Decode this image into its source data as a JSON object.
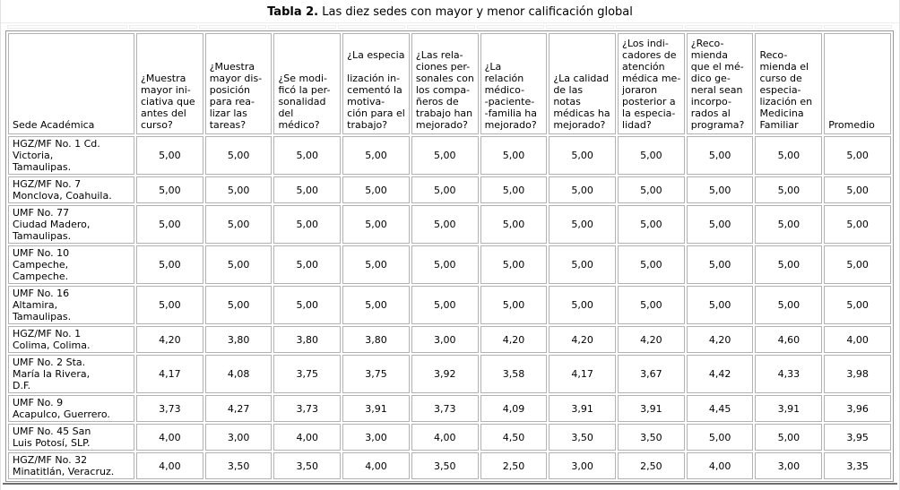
{
  "title": {
    "prefix": "Tabla 2.",
    "text": "Las diez sedes con mayor y menor calificación global"
  },
  "table": {
    "columns": [
      "Sede Académica",
      "¿Muestra\nmayor ini-\nciativa que\nantes del\ncurso?",
      "¿Muestra\nmayor dis-\nposición\npara rea-\nlizar las\ntareas?",
      "¿Se modi-\nficó la per-\nsonalidad\ndel médico?",
      "¿La especia\n\nlización in-\ncementó la\nmotiva-\nción para el\ntrabajo?",
      "¿Las rela-\nciones per-\nsonales con\nlos compa-\nñeros de\ntrabajo han\nmejorado?",
      "¿La relación\nmédico-\n-paciente-\n-familia ha\nmejorado?",
      "¿La calidad\nde las notas\nmédicas ha\nmejorado?",
      "¿Los indi-\ncadores de\natención\nmédica me-\njoraron\nposterior a\nla especia-\nlidad?",
      "¿Reco-\nmienda\nque el mé-\ndico ge-\nneral sean\nincorpo-\nrados al\nprograma?",
      "Reco-\nmienda el\ncurso de\nespecia-\nlización en\nMedicina\nFamiliar",
      "Promedio"
    ],
    "rows": [
      {
        "sede": "HGZ/MF No. 1 Cd.\nVictoria,\nTamaulipas.",
        "values": [
          "5,00",
          "5,00",
          "5,00",
          "5,00",
          "5,00",
          "5,00",
          "5,00",
          "5,00",
          "5,00",
          "5,00",
          "5,00"
        ]
      },
      {
        "sede": "HGZ/MF No. 7\nMonclova, Coahuila.",
        "values": [
          "5,00",
          "5,00",
          "5,00",
          "5,00",
          "5,00",
          "5,00",
          "5,00",
          "5,00",
          "5,00",
          "5,00",
          "5,00"
        ]
      },
      {
        "sede": "UMF No. 77\nCiudad Madero,\nTamaulipas.",
        "values": [
          "5,00",
          "5,00",
          "5,00",
          "5,00",
          "5,00",
          "5,00",
          "5,00",
          "5,00",
          "5,00",
          "5,00",
          "5,00"
        ]
      },
      {
        "sede": "UMF No. 10\nCampeche,\nCampeche.",
        "values": [
          "5,00",
          "5,00",
          "5,00",
          "5,00",
          "5,00",
          "5,00",
          "5,00",
          "5,00",
          "5,00",
          "5,00",
          "5,00"
        ]
      },
      {
        "sede": "UMF No. 16\nAltamira,\nTamaulipas.",
        "values": [
          "5,00",
          "5,00",
          "5,00",
          "5,00",
          "5,00",
          "5,00",
          "5,00",
          "5,00",
          "5,00",
          "5,00",
          "5,00"
        ]
      },
      {
        "sede": "HGZ/MF No. 1\nColima, Colima.",
        "values": [
          "4,20",
          "3,80",
          "3,80",
          "3,80",
          "3,00",
          "4,20",
          "4,20",
          "4,20",
          "4,20",
          "4,60",
          "4,00"
        ]
      },
      {
        "sede": "UMF No. 2 Sta.\nMaría la Rivera,\nD.F.",
        "values": [
          "4,17",
          "4,08",
          "3,75",
          "3,75",
          "3,92",
          "3,58",
          "4,17",
          "3,67",
          "4,42",
          "4,33",
          "3,98"
        ]
      },
      {
        "sede": "UMF No. 9\nAcapulco, Guerrero.",
        "values": [
          "3,73",
          "4,27",
          "3,73",
          "3,91",
          "3,73",
          "4,09",
          "3,91",
          "3,91",
          "4,45",
          "3,91",
          "3,96"
        ]
      },
      {
        "sede": "UMF No. 45 San\nLuis Potosí, SLP.",
        "values": [
          "4,00",
          "3,00",
          "4,00",
          "3,00",
          "4,00",
          "4,50",
          "3,50",
          "3,50",
          "5,00",
          "5,00",
          "3,95"
        ]
      },
      {
        "sede": "HGZ/MF No. 32\nMinatitlán, Veracruz.",
        "values": [
          "4,00",
          "3,50",
          "3,50",
          "4,00",
          "3,50",
          "2,50",
          "3,00",
          "2,50",
          "4,00",
          "3,00",
          "3,35"
        ]
      }
    ]
  },
  "colors": {
    "cell_border": "#b2b2b2",
    "table_border": "#989898",
    "faint_rule": "#ededed",
    "bottom_rule": "#6f6f6f"
  }
}
